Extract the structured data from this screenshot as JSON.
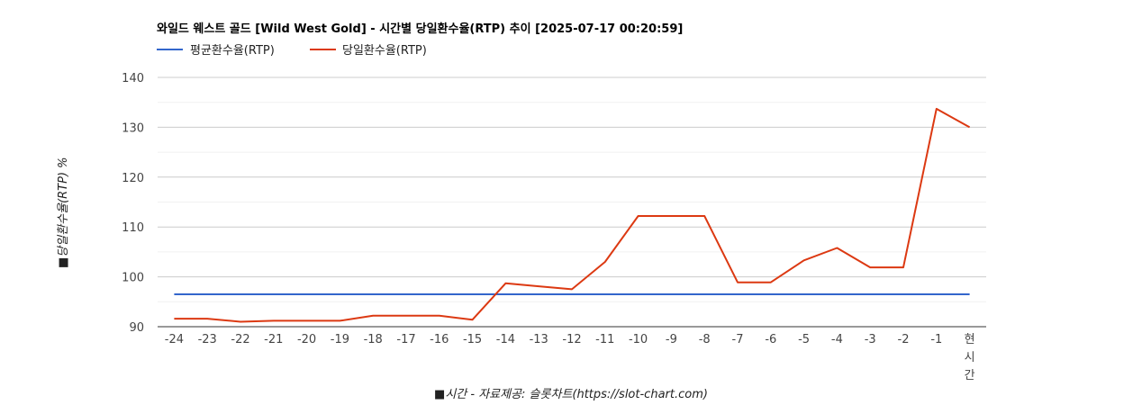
{
  "chart_data": {
    "type": "line",
    "title": "와일드 웨스트 골드 [Wild West Gold] - 시간별 당일환수율(RTP) 추이 [2025-07-17 00:20:59]",
    "xlabel": "■시간 - 자료제공: 슬롯차트(https://slot-chart.com)",
    "ylabel": "■당일환수율(RTP) %",
    "categories": [
      "-24",
      "-23",
      "-22",
      "-21",
      "-20",
      "-19",
      "-18",
      "-17",
      "-16",
      "-15",
      "-14",
      "-13",
      "-12",
      "-11",
      "-10",
      "-9",
      "-8",
      "-7",
      "-6",
      "-5",
      "-4",
      "-3",
      "-2",
      "-1",
      "현시간"
    ],
    "yticks": [
      90,
      100,
      110,
      120,
      130,
      140
    ],
    "ylim": [
      90,
      140
    ],
    "grid": true,
    "legend_position": "top-left",
    "series": [
      {
        "name": "평균환수율(RTP)",
        "color": "#3366cc",
        "values": [
          96.5,
          96.5,
          96.5,
          96.5,
          96.5,
          96.5,
          96.5,
          96.5,
          96.5,
          96.5,
          96.5,
          96.5,
          96.5,
          96.5,
          96.5,
          96.5,
          96.5,
          96.5,
          96.5,
          96.5,
          96.5,
          96.5,
          96.5,
          96.5,
          96.5
        ]
      },
      {
        "name": "당일환수율(RTP)",
        "color": "#dc3912",
        "values": [
          91.6,
          91.6,
          91.0,
          91.2,
          91.2,
          91.2,
          92.2,
          92.2,
          92.2,
          91.4,
          98.7,
          98.1,
          97.5,
          103.0,
          112.2,
          112.2,
          112.2,
          98.9,
          98.9,
          103.3,
          105.8,
          101.9,
          101.9,
          133.7,
          130.0
        ]
      }
    ]
  }
}
